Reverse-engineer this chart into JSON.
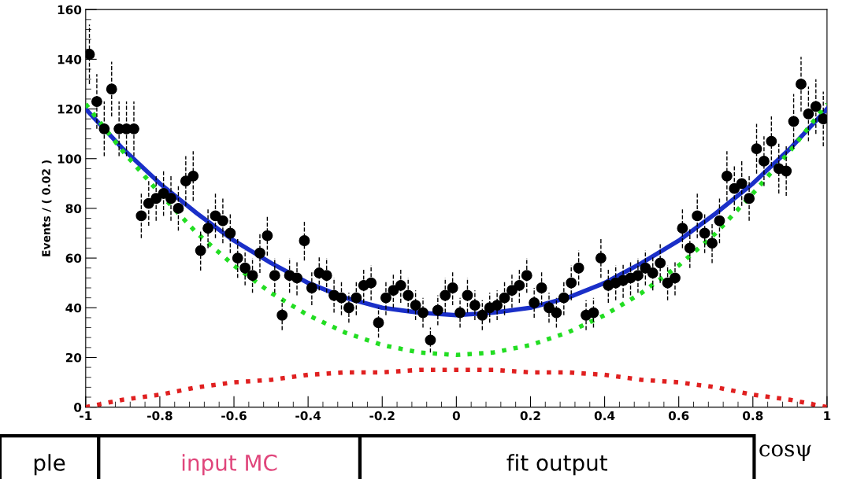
{
  "chart_data": {
    "type": "scatter",
    "ylabel": "Events / ( 0.02 )",
    "xlim": [
      -1,
      1
    ],
    "ylim": [
      0,
      160
    ],
    "xticks": [
      -1,
      -0.8,
      -0.6,
      -0.4,
      -0.2,
      0,
      0.2,
      0.4,
      0.6,
      0.8,
      1
    ],
    "yticks": [
      0,
      20,
      40,
      60,
      80,
      100,
      120,
      140,
      160
    ],
    "grid": false,
    "legend": false,
    "annotations": [
      "ple",
      "input MC",
      "fit output",
      "cosψ"
    ],
    "series": [
      {
        "color": "#000000",
        "marker": "circle",
        "x": [
          -0.99,
          -0.97,
          -0.95,
          -0.93,
          -0.91,
          -0.89,
          -0.87,
          -0.85,
          -0.83,
          -0.81,
          -0.79,
          -0.77,
          -0.75,
          -0.73,
          -0.71,
          -0.69,
          -0.67,
          -0.65,
          -0.63,
          -0.61,
          -0.59,
          -0.57,
          -0.55,
          -0.53,
          -0.51,
          -0.49,
          -0.47,
          -0.45,
          -0.43,
          -0.41,
          -0.39,
          -0.37,
          -0.35,
          -0.33,
          -0.31,
          -0.29,
          -0.27,
          -0.25,
          -0.23,
          -0.21,
          -0.19,
          -0.17,
          -0.15,
          -0.13,
          -0.11,
          -0.09,
          -0.07,
          -0.05,
          -0.03,
          -0.01,
          0.01,
          0.03,
          0.05,
          0.07,
          0.09,
          0.11,
          0.13,
          0.15,
          0.17,
          0.19,
          0.21,
          0.23,
          0.25,
          0.27,
          0.29,
          0.31,
          0.33,
          0.35,
          0.37,
          0.39,
          0.41,
          0.43,
          0.45,
          0.47,
          0.49,
          0.51,
          0.53,
          0.55,
          0.57,
          0.59,
          0.61,
          0.63,
          0.65,
          0.67,
          0.69,
          0.71,
          0.73,
          0.75,
          0.77,
          0.79,
          0.81,
          0.83,
          0.85,
          0.87,
          0.89,
          0.91,
          0.93,
          0.95,
          0.97,
          0.99
        ],
        "values": [
          142,
          123,
          112,
          128,
          112,
          112,
          112,
          77,
          82,
          84,
          86,
          84,
          80,
          91,
          93,
          63,
          72,
          77,
          75,
          70,
          60,
          56,
          53,
          62,
          69,
          53,
          37,
          53,
          52,
          67,
          48,
          54,
          53,
          45,
          44,
          40,
          44,
          49,
          50,
          34,
          44,
          47,
          49,
          45,
          41,
          38,
          27,
          39,
          45,
          48,
          38,
          45,
          41,
          37,
          40,
          41,
          44,
          47,
          49,
          53,
          42,
          48,
          40,
          38,
          44,
          50,
          56,
          37,
          38,
          60,
          49,
          50,
          51,
          52,
          53,
          56,
          54,
          58,
          50,
          52,
          72,
          64,
          77,
          70,
          66,
          75,
          93,
          88,
          90,
          84,
          104,
          99,
          107,
          96,
          95,
          115,
          130,
          118,
          121,
          116
        ],
        "errors": [
          12,
          11,
          11,
          11,
          11,
          11,
          11,
          9,
          9,
          9,
          9,
          9,
          9,
          10,
          10,
          8,
          8,
          9,
          9,
          8,
          8,
          7,
          7,
          8,
          8,
          7,
          6,
          7,
          7,
          8,
          7,
          7,
          7,
          7,
          7,
          6,
          7,
          7,
          7,
          6,
          7,
          7,
          7,
          7,
          6,
          6,
          5,
          6,
          7,
          7,
          6,
          7,
          6,
          6,
          6,
          6,
          7,
          7,
          7,
          7,
          6,
          7,
          6,
          6,
          7,
          7,
          7,
          6,
          6,
          8,
          7,
          7,
          7,
          7,
          7,
          7,
          7,
          8,
          7,
          7,
          8,
          8,
          9,
          8,
          8,
          9,
          10,
          9,
          9,
          9,
          10,
          10,
          10,
          10,
          10,
          11,
          11,
          11,
          11,
          11
        ]
      },
      {
        "type": "line",
        "color": "#1a2fc8",
        "line_style": "solid",
        "marker": "none",
        "x": [
          -1,
          -0.9,
          -0.8,
          -0.7,
          -0.6,
          -0.5,
          -0.4,
          -0.3,
          -0.2,
          -0.1,
          0,
          0.1,
          0.2,
          0.3,
          0.4,
          0.5,
          0.6,
          0.7,
          0.8,
          0.9,
          1
        ],
        "values": [
          120,
          104,
          90,
          78,
          67,
          58,
          50,
          44,
          40,
          38,
          37,
          38,
          40,
          44,
          50,
          58,
          67,
          78,
          90,
          104,
          120
        ]
      },
      {
        "type": "line",
        "color": "#22dd22",
        "line_style": "dotted",
        "marker": "none",
        "x": [
          -1,
          -0.9,
          -0.8,
          -0.7,
          -0.6,
          -0.5,
          -0.4,
          -0.3,
          -0.2,
          -0.1,
          0,
          0.1,
          0.2,
          0.3,
          0.4,
          0.5,
          0.6,
          0.7,
          0.8,
          0.9,
          1
        ],
        "values": [
          122,
          103,
          86,
          70,
          57,
          46,
          37,
          30,
          25,
          22,
          21,
          22,
          25,
          30,
          37,
          46,
          57,
          70,
          86,
          103,
          122
        ]
      },
      {
        "type": "line",
        "color": "#e02020",
        "line_style": "dotted",
        "marker": "none",
        "x": [
          -1,
          -0.9,
          -0.8,
          -0.7,
          -0.6,
          -0.5,
          -0.4,
          -0.3,
          -0.2,
          -0.1,
          0,
          0.1,
          0.2,
          0.3,
          0.4,
          0.5,
          0.6,
          0.7,
          0.8,
          0.9,
          1
        ],
        "values": [
          0,
          3,
          5,
          8,
          10,
          11,
          13,
          14,
          14,
          15,
          15,
          15,
          14,
          14,
          13,
          11,
          10,
          8,
          5,
          3,
          0
        ]
      }
    ]
  }
}
